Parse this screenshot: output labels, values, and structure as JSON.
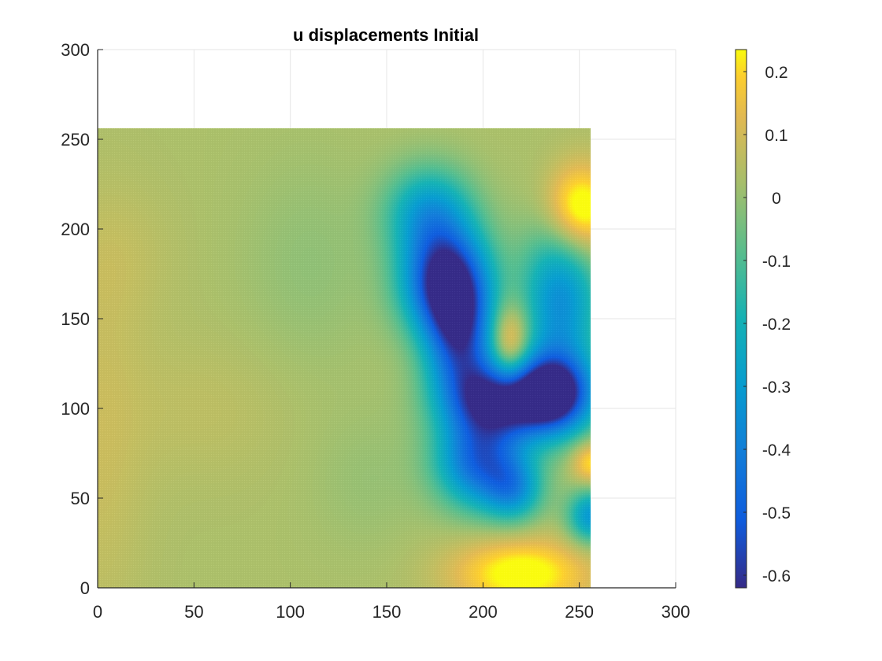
{
  "chart_data": {
    "type": "heatmap",
    "title": "u displacements Initial",
    "xlabel": "",
    "ylabel": "",
    "xlim": [
      0,
      300
    ],
    "ylim": [
      0,
      300
    ],
    "x_ticks": [
      0,
      50,
      100,
      150,
      200,
      250,
      300
    ],
    "y_ticks": [
      0,
      50,
      100,
      150,
      200,
      250,
      300
    ],
    "x_tick_labels": [
      "0",
      "50",
      "100",
      "150",
      "200",
      "250",
      "300"
    ],
    "y_tick_labels": [
      "0",
      "50",
      "100",
      "150",
      "200",
      "250",
      "300"
    ],
    "grid": true,
    "colormap": "parula",
    "data_extent": {
      "x": [
        0,
        256
      ],
      "y": [
        0,
        256
      ]
    },
    "colorbar": {
      "range": [
        -0.62,
        0.235
      ],
      "ticks": [
        0.2,
        0.1,
        0,
        -0.1,
        -0.2,
        -0.3,
        -0.4,
        -0.5,
        -0.6
      ],
      "tick_labels": [
        "0.2",
        "0.1",
        "0",
        "-0.1",
        "-0.2",
        "-0.3",
        "-0.4",
        "-0.5",
        "-0.6"
      ]
    },
    "field": {
      "description_values_in_data_units": "approximate u displacement: base level plus localized features (x, y, amplitude, radius_x, radius_y)",
      "base": 0.03,
      "features": [
        {
          "x": 0,
          "y": 80,
          "amp": 0.05,
          "rx": 25,
          "ry": 110
        },
        {
          "x": 55,
          "y": 100,
          "amp": 0.03,
          "rx": 45,
          "ry": 40
        },
        {
          "x": 10,
          "y": 185,
          "amp": 0.03,
          "rx": 30,
          "ry": 40
        },
        {
          "x": 110,
          "y": 180,
          "amp": -0.04,
          "rx": 35,
          "ry": 60
        },
        {
          "x": 140,
          "y": 60,
          "amp": -0.03,
          "rx": 30,
          "ry": 40
        },
        {
          "x": 180,
          "y": 172,
          "amp": -0.62,
          "rx": 22,
          "ry": 30
        },
        {
          "x": 188,
          "y": 140,
          "amp": -0.5,
          "rx": 18,
          "ry": 35
        },
        {
          "x": 210,
          "y": 105,
          "amp": -0.62,
          "rx": 28,
          "ry": 22
        },
        {
          "x": 238,
          "y": 108,
          "amp": -0.58,
          "rx": 20,
          "ry": 22
        },
        {
          "x": 198,
          "y": 70,
          "amp": -0.48,
          "rx": 22,
          "ry": 25
        },
        {
          "x": 216,
          "y": 55,
          "amp": -0.3,
          "rx": 15,
          "ry": 18
        },
        {
          "x": 240,
          "y": 160,
          "amp": -0.38,
          "rx": 20,
          "ry": 45
        },
        {
          "x": 172,
          "y": 210,
          "amp": -0.3,
          "rx": 22,
          "ry": 25
        },
        {
          "x": 214,
          "y": 135,
          "amp": 0.28,
          "rx": 10,
          "ry": 22
        },
        {
          "x": 250,
          "y": 210,
          "amp": 0.3,
          "rx": 18,
          "ry": 25
        },
        {
          "x": 220,
          "y": 8,
          "amp": 0.24,
          "rx": 35,
          "ry": 20
        },
        {
          "x": 256,
          "y": 70,
          "amp": 0.2,
          "rx": 10,
          "ry": 12
        },
        {
          "x": 256,
          "y": 40,
          "amp": -0.35,
          "rx": 12,
          "ry": 15
        }
      ]
    }
  }
}
